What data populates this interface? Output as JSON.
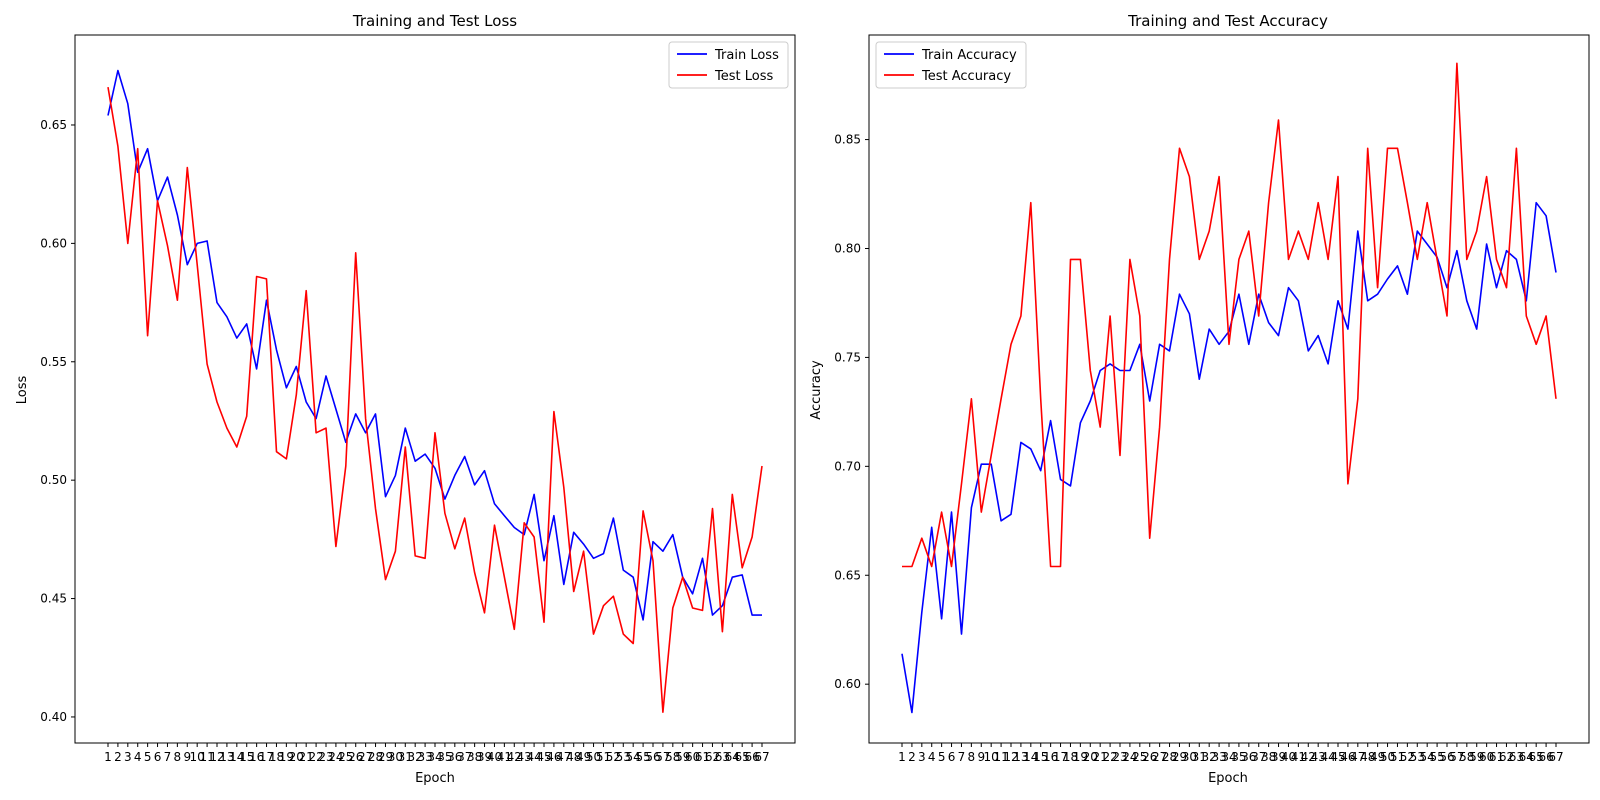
{
  "charts": {
    "loss": {
      "title": "Training and Test Loss",
      "xlabel": "Epoch",
      "ylabel": "Loss"
    },
    "acc": {
      "title": "Training and Test Accuracy",
      "xlabel": "Epoch",
      "ylabel": "Accuracy"
    }
  },
  "colors": {
    "train": "#0000ff",
    "test": "#ff0000"
  },
  "chart_data": [
    {
      "type": "line",
      "title": "Training and Test Loss",
      "xlabel": "Epoch",
      "ylabel": "Loss",
      "x_range": [
        1,
        67
      ],
      "yticks": [
        0.4,
        0.45,
        0.5,
        0.55,
        0.6,
        0.65
      ],
      "ylim": [
        0.389,
        0.688
      ],
      "grid": false,
      "legend": "top-right",
      "series": [
        {
          "name": "Train Loss",
          "color": "#0000ff",
          "values": [
            0.654,
            0.673,
            0.659,
            0.63,
            0.64,
            0.618,
            0.628,
            0.612,
            0.591,
            0.6,
            0.601,
            0.575,
            0.569,
            0.56,
            0.566,
            0.547,
            0.576,
            0.555,
            0.539,
            0.548,
            0.533,
            0.526,
            0.544,
            0.53,
            0.516,
            0.528,
            0.52,
            0.528,
            0.493,
            0.502,
            0.522,
            0.508,
            0.511,
            0.505,
            0.492,
            0.502,
            0.51,
            0.498,
            0.504,
            0.49,
            0.485,
            0.48,
            0.477,
            0.494,
            0.466,
            0.485,
            0.456,
            0.478,
            0.473,
            0.467,
            0.469,
            0.484,
            0.462,
            0.459,
            0.441,
            0.474,
            0.47,
            0.477,
            0.459,
            0.452,
            0.467,
            0.443,
            0.447,
            0.459,
            0.46,
            0.443,
            0.443
          ]
        },
        {
          "name": "Test Loss",
          "color": "#ff0000",
          "values": [
            0.666,
            0.641,
            0.6,
            0.64,
            0.561,
            0.618,
            0.599,
            0.576,
            0.632,
            0.591,
            0.549,
            0.533,
            0.522,
            0.514,
            0.527,
            0.586,
            0.585,
            0.512,
            0.509,
            0.536,
            0.58,
            0.52,
            0.522,
            0.472,
            0.506,
            0.596,
            0.526,
            0.488,
            0.458,
            0.47,
            0.514,
            0.468,
            0.467,
            0.52,
            0.486,
            0.471,
            0.484,
            0.461,
            0.444,
            0.481,
            0.459,
            0.437,
            0.482,
            0.476,
            0.44,
            0.529,
            0.497,
            0.453,
            0.47,
            0.435,
            0.447,
            0.451,
            0.435,
            0.431,
            0.487,
            0.466,
            0.402,
            0.446,
            0.459,
            0.446,
            0.445,
            0.488,
            0.436,
            0.494,
            0.463,
            0.476,
            0.506
          ]
        }
      ]
    },
    {
      "type": "line",
      "title": "Training and Test Accuracy",
      "xlabel": "Epoch",
      "ylabel": "Accuracy",
      "x_range": [
        1,
        67
      ],
      "yticks": [
        0.6,
        0.65,
        0.7,
        0.75,
        0.8,
        0.85
      ],
      "ylim": [
        0.573,
        0.898
      ],
      "grid": false,
      "legend": "top-left",
      "series": [
        {
          "name": "Train Accuracy",
          "color": "#0000ff",
          "values": [
            0.614,
            0.587,
            0.633,
            0.672,
            0.63,
            0.679,
            0.623,
            0.681,
            0.701,
            0.701,
            0.675,
            0.678,
            0.711,
            0.708,
            0.698,
            0.721,
            0.694,
            0.691,
            0.72,
            0.73,
            0.744,
            0.747,
            0.744,
            0.744,
            0.756,
            0.73,
            0.756,
            0.753,
            0.779,
            0.77,
            0.74,
            0.763,
            0.756,
            0.762,
            0.779,
            0.756,
            0.779,
            0.766,
            0.76,
            0.782,
            0.776,
            0.753,
            0.76,
            0.747,
            0.776,
            0.763,
            0.808,
            0.776,
            0.779,
            0.786,
            0.792,
            0.779,
            0.808,
            0.802,
            0.796,
            0.782,
            0.799,
            0.776,
            0.763,
            0.802,
            0.782,
            0.799,
            0.795,
            0.776,
            0.821,
            0.815,
            0.789
          ]
        },
        {
          "name": "Test Accuracy",
          "color": "#ff0000",
          "values": [
            0.654,
            0.654,
            0.667,
            0.654,
            0.679,
            0.654,
            0.692,
            0.731,
            0.679,
            0.705,
            0.731,
            0.756,
            0.769,
            0.821,
            0.731,
            0.654,
            0.654,
            0.795,
            0.795,
            0.744,
            0.718,
            0.769,
            0.705,
            0.795,
            0.769,
            0.667,
            0.718,
            0.795,
            0.846,
            0.833,
            0.795,
            0.808,
            0.833,
            0.756,
            0.795,
            0.808,
            0.769,
            0.821,
            0.859,
            0.795,
            0.808,
            0.795,
            0.821,
            0.795,
            0.833,
            0.692,
            0.731,
            0.846,
            0.782,
            0.846,
            0.846,
            0.821,
            0.795,
            0.821,
            0.795,
            0.769,
            0.885,
            0.795,
            0.808,
            0.833,
            0.795,
            0.782,
            0.846,
            0.769,
            0.756,
            0.769,
            0.731
          ]
        }
      ]
    }
  ]
}
